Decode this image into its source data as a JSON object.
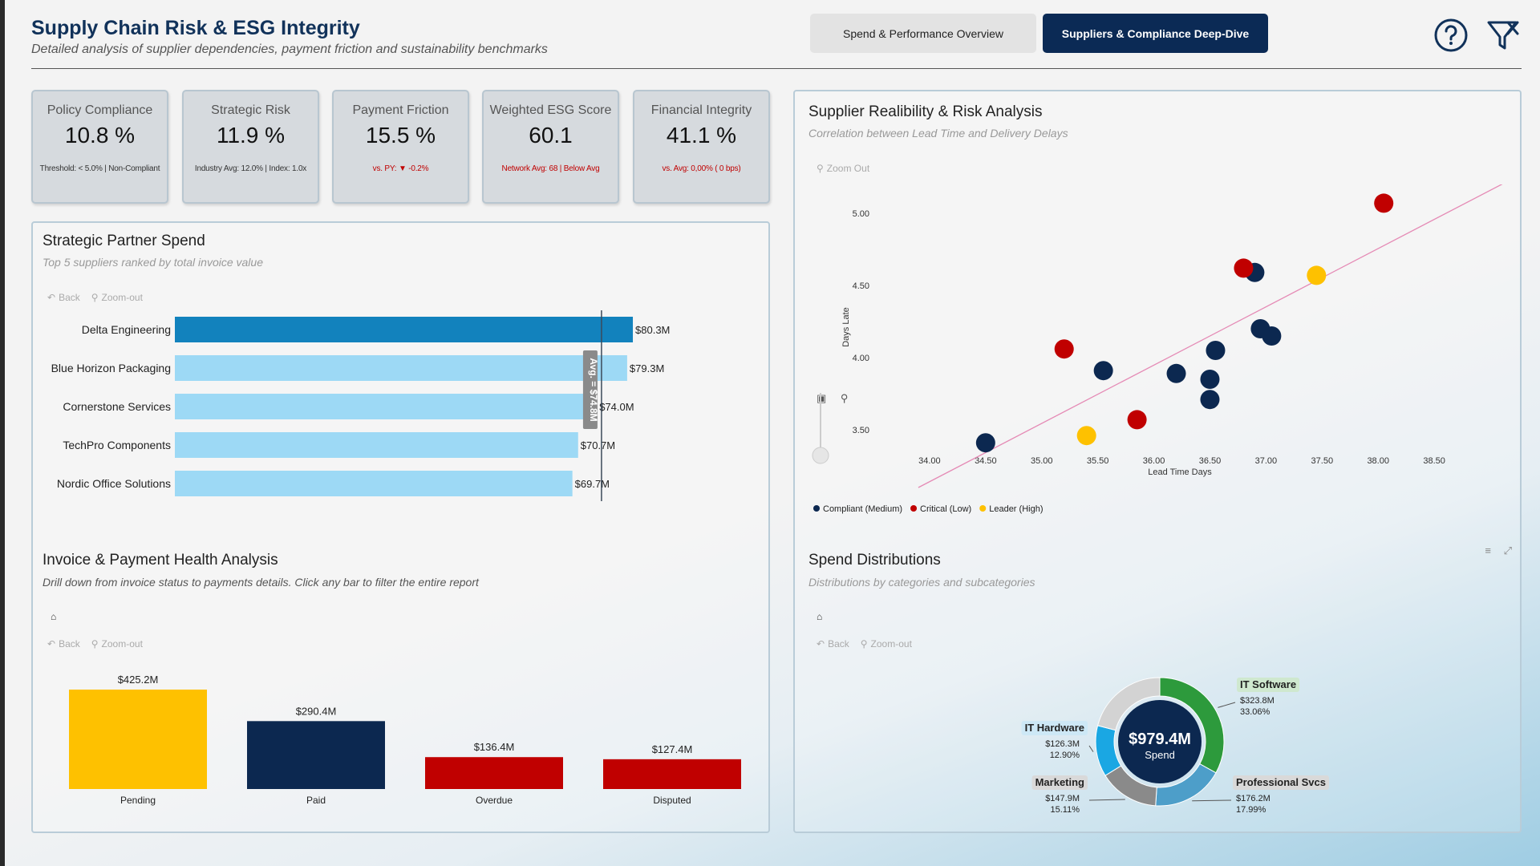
{
  "header": {
    "title": "Supply Chain Risk & ESG Integrity",
    "subtitle": "Detailed analysis of supplier dependencies, payment friction and sustainability benchmarks",
    "tabs": [
      {
        "label": "Spend & Performance Overview",
        "active": false
      },
      {
        "label": "Suppliers & Compliance Deep-Dive",
        "active": true
      }
    ],
    "icons": [
      "help-icon",
      "clear-filter-icon"
    ]
  },
  "kpis": [
    {
      "title": "Policy Compliance",
      "value": "10.8 %",
      "note": "Threshold: < 5.0% | Non-Compliant",
      "note_color": "dark"
    },
    {
      "title": "Strategic Risk",
      "value": "11.9 %",
      "note": "Industry Avg: 12.0% | Index: 1.0x",
      "note_color": "dark"
    },
    {
      "title": "Payment Friction",
      "value": "15.5 %",
      "note": "vs. PY: ▼ -0.2%",
      "note_color": "red"
    },
    {
      "title": "Weighted ESG Score",
      "value": "60.1",
      "note": "Network Avg: 68 | Below Avg",
      "note_color": "red"
    },
    {
      "title": "Financial Integrity",
      "value": "41.1 %",
      "note": "vs. Avg: 0,00% ( 0 bps)",
      "note_color": "red"
    }
  ],
  "toolbar": {
    "back": "Back",
    "zoom_out": "Zoom-out",
    "zoom_out_alt": "Zoom Out"
  },
  "partner_spend": {
    "title": "Strategic Partner Spend",
    "subtitle": "Top 5 suppliers ranked by total invoice value"
  },
  "invoice_health": {
    "title": "Invoice & Payment Health Analysis",
    "subtitle": "Drill down from invoice status to payments details. Click any bar to filter the entire report"
  },
  "reliability": {
    "title": "Supplier Realibility & Risk Analysis",
    "subtitle": "Correlation between Lead Time and Delivery Delays"
  },
  "spend_dist": {
    "title": "Spend Distributions",
    "subtitle": "Distributions by categories and subcategories"
  },
  "chart_data": [
    {
      "id": "partner_spend",
      "type": "bar",
      "orientation": "horizontal",
      "categories": [
        "Delta Engineering",
        "Blue Horizon Packaging",
        "Cornerstone Services",
        "TechPro Components",
        "Nordic Office Solutions"
      ],
      "values": [
        80.3,
        79.3,
        74.0,
        70.7,
        69.7
      ],
      "data_labels": [
        "$80.3M",
        "$79.3M",
        "$74.0M",
        "$70.7M",
        "$69.7M"
      ],
      "highlight_index": 0,
      "average": 74.8,
      "average_label": "Avg. = $74.8M",
      "xlim": [
        0,
        90
      ],
      "colors": {
        "highlight": "#1282bd",
        "normal": "#9dd9f5",
        "avg_line": "#3c4a5a"
      }
    },
    {
      "id": "invoice_health",
      "type": "bar",
      "categories": [
        "Pending",
        "Paid",
        "Overdue",
        "Disputed"
      ],
      "values": [
        425.2,
        290.4,
        136.4,
        127.4
      ],
      "data_labels": [
        "$425.2M",
        "$290.4M",
        "$136.4M",
        "$127.4M"
      ],
      "colors": [
        "#fec100",
        "#0c2850",
        "#c00000",
        "#c00000"
      ],
      "ylim": [
        0,
        425.2
      ]
    },
    {
      "id": "reliability",
      "type": "scatter",
      "xlabel": "Lead Time Days",
      "ylabel": "Days Late",
      "xlim": [
        33.55,
        39.2
      ],
      "ylim": [
        3.3,
        5.2
      ],
      "xticks": [
        "34.00",
        "34.50",
        "35.00",
        "35.50",
        "36.00",
        "36.50",
        "37.00",
        "37.50",
        "38.00",
        "38.50"
      ],
      "xtick_values": [
        34.0,
        34.5,
        35.0,
        35.5,
        36.0,
        36.5,
        37.0,
        37.5,
        38.0,
        38.5
      ],
      "yticks": [
        "5.00",
        "4.50",
        "4.00",
        "3.50"
      ],
      "ytick_values": [
        5.0,
        4.5,
        4.0,
        3.5
      ],
      "trendline": {
        "x": [
          33.9,
          39.15
        ],
        "y": [
          3.1,
          5.22
        ],
        "color": "#e58ab5"
      },
      "series": [
        {
          "name": "Compliant (Medium)",
          "color": "#0c2850",
          "points": [
            [
              34.5,
              3.41
            ],
            [
              35.55,
              3.91
            ],
            [
              36.2,
              3.89
            ],
            [
              36.5,
              3.85
            ],
            [
              36.55,
              4.05
            ],
            [
              36.5,
              3.71
            ],
            [
              36.9,
              4.59
            ],
            [
              36.95,
              4.2
            ],
            [
              37.05,
              4.15
            ]
          ]
        },
        {
          "name": "Critical (Low)",
          "color": "#c00000",
          "points": [
            [
              35.2,
              4.06
            ],
            [
              35.85,
              3.57
            ],
            [
              36.8,
              4.62
            ],
            [
              38.05,
              5.07
            ]
          ]
        },
        {
          "name": "Leader (High)",
          "color": "#fec100",
          "points": [
            [
              35.4,
              3.46
            ],
            [
              37.45,
              4.57
            ]
          ]
        }
      ],
      "legend_position": "bottom-left"
    },
    {
      "id": "spend_dist",
      "type": "pie",
      "style": "donut",
      "center_value": "$979.4M",
      "center_label": "Spend",
      "slices": [
        {
          "label": "IT Software",
          "value": 323.8,
          "value_label": "$323.8M",
          "percent": "33.06%",
          "color": "#2d9a3c"
        },
        {
          "label": "Professional Svcs",
          "value": 176.2,
          "value_label": "$176.2M",
          "percent": "17.99%",
          "color": "#4d9ec9"
        },
        {
          "label": "Marketing",
          "value": 147.9,
          "value_label": "$147.9M",
          "percent": "15.11%",
          "color": "#8a8a8a"
        },
        {
          "label": "IT Hardware",
          "value": 126.3,
          "value_label": "$126.3M",
          "percent": "12.90%",
          "color": "#1aa7e3"
        },
        {
          "label": "Other",
          "value": 205.2,
          "color": "#d3d3d3",
          "unlabeled": true
        }
      ]
    }
  ]
}
